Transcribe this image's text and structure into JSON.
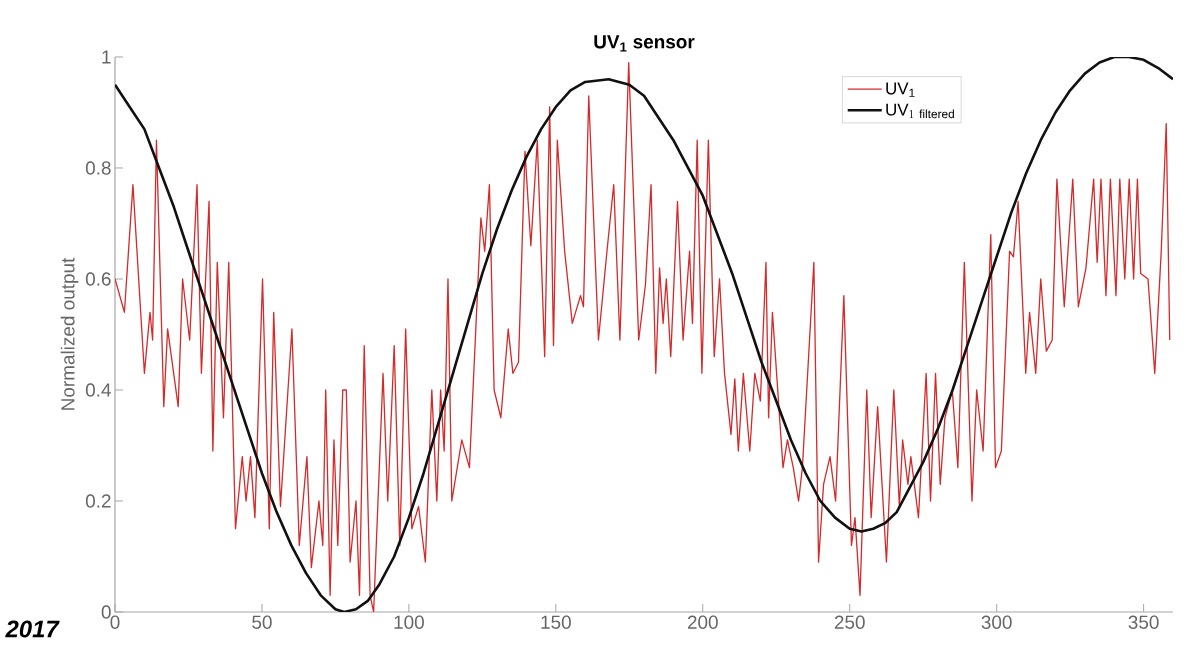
{
  "chart_data": {
    "type": "line",
    "title": "UV$_{1}$ sensor",
    "ylabel": "Normalized output",
    "xlim": [
      0,
      360
    ],
    "ylim": [
      0,
      1
    ],
    "xticks": [
      0,
      50,
      100,
      150,
      200,
      250,
      300,
      350
    ],
    "yticks": [
      0,
      0.2,
      0.4,
      0.6,
      0.8,
      1
    ],
    "legend": "top right",
    "grid": false,
    "marker": "none",
    "line_style": "solid",
    "annotations": [
      "2017"
    ],
    "series": [
      {
        "name": "UV$_{1}$",
        "color": "#d42a2a",
        "x": [
          0,
          3.2,
          6.1,
          10,
          11.9,
          12.8,
          14.1,
          16.6,
          17.9,
          21.5,
          23,
          25.4,
          27.9,
          29.4,
          32,
          33.3,
          34.8,
          36.9,
          38.7,
          41,
          43.3,
          44.6,
          46.1,
          47.6,
          50.2,
          52.5,
          54,
          56.3,
          60.2,
          62.7,
          65.3,
          66.8,
          69.4,
          70.7,
          71.7,
          73.2,
          74.5,
          75.8,
          77.5,
          78.7,
          80,
          82,
          83.2,
          84.8,
          86.8,
          88,
          91.2,
          92.8,
          95,
          96.9,
          98.9,
          101,
          103.3,
          105.6,
          107.8,
          109.5,
          110.8,
          112,
          113.3,
          114.6,
          118,
          120.6,
          124.5,
          125.8,
          127.4,
          129,
          131.3,
          133.8,
          135.4,
          137.3,
          139.5,
          141.5,
          143.7,
          146.2,
          147.9,
          149.2,
          150.5,
          153,
          155.6,
          158.4,
          159.4,
          161.2,
          164.5,
          167.4,
          169.7,
          171.8,
          174.8,
          178.2,
          180.5,
          182.4,
          184,
          185.3,
          186.5,
          187.6,
          189.1,
          191.4,
          193.3,
          195.5,
          196.5,
          198.1,
          199.7,
          201.9,
          203.9,
          205.7,
          207.4,
          209.6,
          210.9,
          212.1,
          213.8,
          216,
          217.7,
          219.6,
          221.5,
          222.4,
          223.7,
          227.3,
          228.8,
          230.8,
          232.6,
          233.9,
          237.8,
          239.4,
          241.1,
          243.3,
          245.2,
          248,
          250.6,
          251.8,
          253.5,
          255.8,
          257.3,
          259.5,
          262.5,
          265,
          266.9,
          268,
          269.8,
          270.8,
          273.4,
          276,
          277.5,
          279.2,
          280.8,
          282.4,
          284.9,
          286.8,
          289,
          291.6,
          293.2,
          295.4,
          298,
          299.6,
          301.6,
          304.4,
          305.7,
          307.3,
          309.9,
          311.2,
          313.3,
          315,
          316.9,
          318.9,
          320.5,
          323,
          325.9,
          327.8,
          330.4,
          333,
          334.2,
          335.5,
          337.2,
          338.7,
          340.6,
          341.9,
          343.6,
          345.1,
          346.6,
          347.9,
          349,
          351.5,
          353.8,
          356,
          357.7,
          358.9
        ],
        "values": [
          0.6,
          0.54,
          0.77,
          0.43,
          0.54,
          0.49,
          0.85,
          0.37,
          0.51,
          0.37,
          0.6,
          0.49,
          0.77,
          0.43,
          0.74,
          0.29,
          0.63,
          0.35,
          0.63,
          0.15,
          0.28,
          0.2,
          0.28,
          0.17,
          0.6,
          0.15,
          0.54,
          0.19,
          0.51,
          0.12,
          0.28,
          0.08,
          0.2,
          0.12,
          0.4,
          0.03,
          0.31,
          0.12,
          0.4,
          0.4,
          0.09,
          0.2,
          0.03,
          0.48,
          0.03,
          0.0,
          0.43,
          0.2,
          0.48,
          0.12,
          0.51,
          0.15,
          0.19,
          0.09,
          0.4,
          0.2,
          0.4,
          0.29,
          0.6,
          0.2,
          0.31,
          0.26,
          0.71,
          0.65,
          0.77,
          0.4,
          0.35,
          0.51,
          0.43,
          0.45,
          0.83,
          0.66,
          0.85,
          0.46,
          0.91,
          0.48,
          0.85,
          0.65,
          0.52,
          0.57,
          0.55,
          0.93,
          0.49,
          0.65,
          0.77,
          0.49,
          0.99,
          0.49,
          0.59,
          0.77,
          0.43,
          0.62,
          0.52,
          0.6,
          0.46,
          0.74,
          0.49,
          0.65,
          0.52,
          0.85,
          0.43,
          0.85,
          0.46,
          0.6,
          0.43,
          0.32,
          0.42,
          0.29,
          0.43,
          0.29,
          0.43,
          0.38,
          0.63,
          0.35,
          0.54,
          0.26,
          0.31,
          0.26,
          0.2,
          0.26,
          0.63,
          0.09,
          0.23,
          0.28,
          0.2,
          0.57,
          0.12,
          0.17,
          0.03,
          0.4,
          0.17,
          0.37,
          0.09,
          0.4,
          0.19,
          0.31,
          0.23,
          0.28,
          0.17,
          0.43,
          0.2,
          0.43,
          0.23,
          0.35,
          0.4,
          0.26,
          0.63,
          0.2,
          0.4,
          0.29,
          0.68,
          0.26,
          0.29,
          0.65,
          0.64,
          0.74,
          0.43,
          0.54,
          0.43,
          0.6,
          0.47,
          0.49,
          0.78,
          0.55,
          0.78,
          0.55,
          0.62,
          0.78,
          0.63,
          0.78,
          0.57,
          0.78,
          0.57,
          0.78,
          0.6,
          0.78,
          0.6,
          0.78,
          0.61,
          0.6,
          0.43,
          0.65,
          0.88,
          0.49
        ]
      },
      {
        "name": "\\mathrm{UV}_{1\\ \\mathrm{filtered}}",
        "color": "#111111",
        "x": [
          0,
          5,
          10,
          15,
          20,
          25,
          30,
          35,
          40,
          45,
          50,
          55,
          60,
          65,
          70,
          75,
          78,
          82,
          86,
          90,
          95,
          100,
          105,
          110,
          115,
          120,
          125,
          130,
          135,
          140,
          145,
          150,
          155,
          160,
          168,
          175,
          180,
          185,
          190,
          195,
          200,
          205,
          210,
          215,
          220,
          225,
          230,
          235,
          240,
          245,
          250,
          254,
          258,
          262,
          266,
          270,
          275,
          280,
          285,
          290,
          295,
          300,
          305,
          310,
          315,
          320,
          325,
          330,
          335,
          340,
          345,
          350,
          355,
          360
        ],
        "values": [
          0.95,
          0.91,
          0.87,
          0.8,
          0.73,
          0.65,
          0.57,
          0.49,
          0.41,
          0.33,
          0.25,
          0.18,
          0.12,
          0.07,
          0.03,
          0.005,
          0,
          0.005,
          0.02,
          0.05,
          0.1,
          0.17,
          0.25,
          0.34,
          0.43,
          0.52,
          0.61,
          0.69,
          0.76,
          0.82,
          0.87,
          0.91,
          0.94,
          0.955,
          0.96,
          0.95,
          0.93,
          0.89,
          0.85,
          0.8,
          0.75,
          0.68,
          0.61,
          0.53,
          0.45,
          0.38,
          0.31,
          0.25,
          0.2,
          0.17,
          0.15,
          0.145,
          0.15,
          0.16,
          0.18,
          0.22,
          0.27,
          0.33,
          0.4,
          0.48,
          0.56,
          0.64,
          0.72,
          0.79,
          0.85,
          0.9,
          0.94,
          0.97,
          0.99,
          1.0,
          1.0,
          0.995,
          0.98,
          0.96
        ]
      }
    ]
  }
}
